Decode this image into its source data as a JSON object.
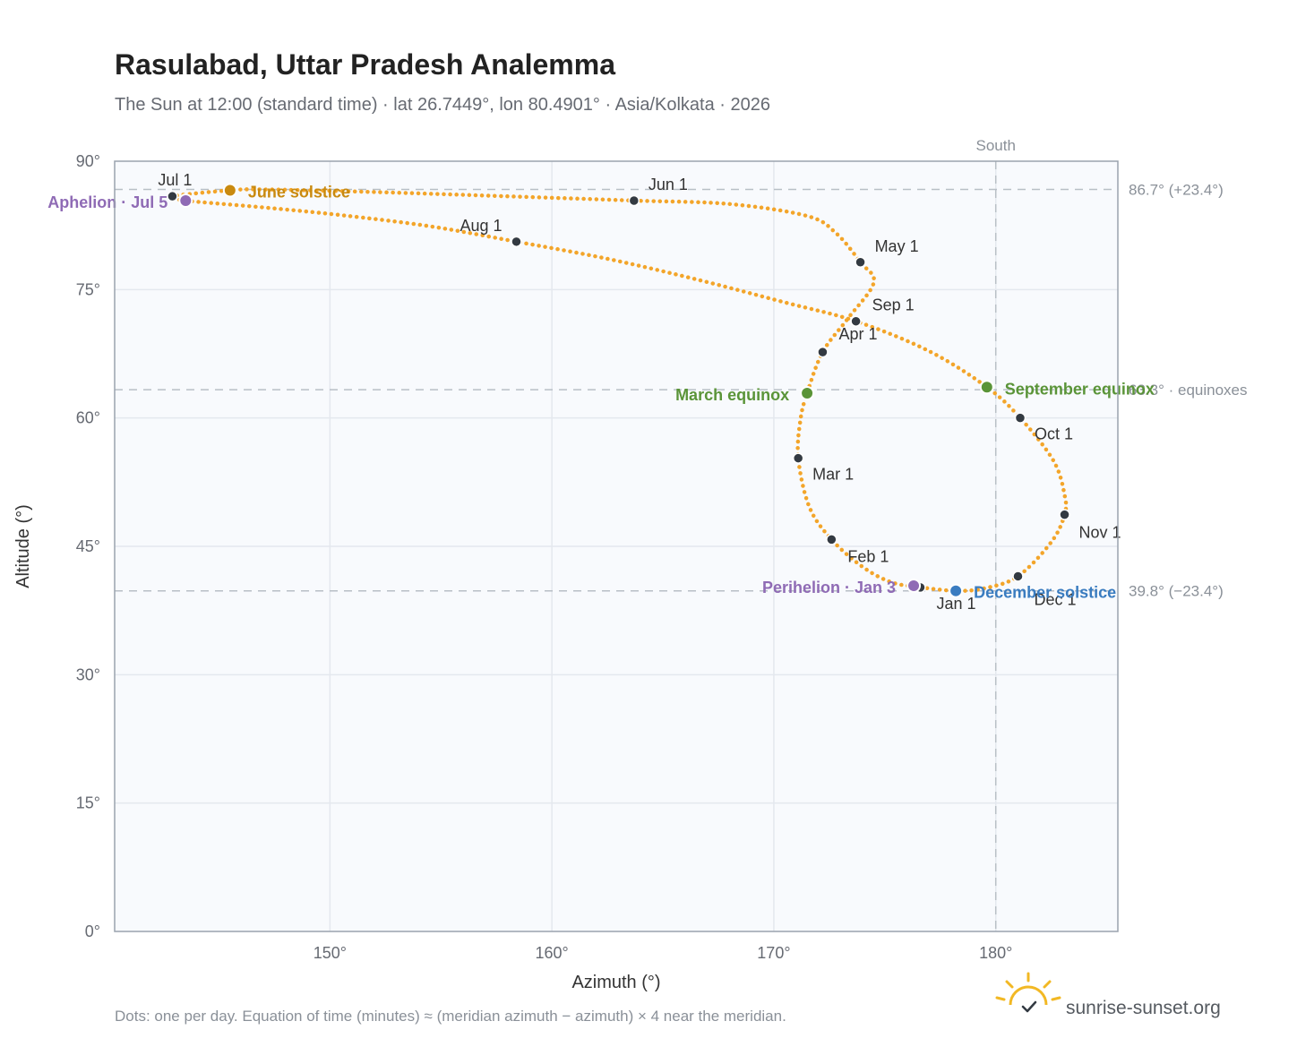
{
  "title": "Rasulabad, Uttar Pradesh Analemma",
  "subtitle": "The Sun at 12:00 (standard time) · lat 26.7449°, lon 80.4901° · Asia/Kolkata · 2026",
  "footnote": "Dots: one per day. Equation of time (minutes) ≈ (meridian azimuth − azimuth) × 4 near the meridian.",
  "brand": {
    "name": "sunrise-sunset.org",
    "logo_icon": "sun-logo-icon"
  },
  "colors": {
    "curve": "#f3a52a",
    "month_dot": "#333a42",
    "solstice_june": "#c98a10",
    "solstice_dec": "#3a7cc0",
    "equinox": "#5a9438",
    "apsis": "#8f6bb5",
    "reference": "#b8bfc6",
    "plot_bg": "#f8fafd",
    "grid": "#e4e8ee",
    "frame": "#9aa3ae"
  },
  "chart_data": {
    "type": "scatter",
    "xlabel": "Azimuth (°)",
    "ylabel": "Altitude (°)",
    "xlim": [
      140.3,
      185.5
    ],
    "ylim": [
      0,
      90
    ],
    "x_ticks": [
      150,
      160,
      170,
      180
    ],
    "x_tick_labels": [
      "150°",
      "160°",
      "170°",
      "180°"
    ],
    "y_ticks": [
      0,
      15,
      30,
      45,
      60,
      75,
      90
    ],
    "y_tick_labels": [
      "0°",
      "15°",
      "30°",
      "45°",
      "60°",
      "75°",
      "90°"
    ],
    "grid": true,
    "path": [
      [
        176.6,
        40.2
      ],
      [
        175.3,
        40.8
      ],
      [
        174.0,
        42.6
      ],
      [
        172.6,
        45.8
      ],
      [
        171.6,
        49.6
      ],
      [
        171.1,
        55.3
      ],
      [
        171.2,
        59.8
      ],
      [
        171.5,
        62.9
      ],
      [
        172.2,
        67.7
      ],
      [
        173.3,
        71.5
      ],
      [
        174.5,
        75.8
      ],
      [
        173.9,
        78.2
      ],
      [
        172.8,
        81.6
      ],
      [
        171.5,
        83.6
      ],
      [
        168.0,
        85.0
      ],
      [
        163.7,
        85.4
      ],
      [
        158.0,
        85.9
      ],
      [
        152.0,
        86.4
      ],
      [
        147.0,
        86.7
      ],
      [
        145.5,
        86.6
      ],
      [
        142.9,
        85.9
      ],
      [
        143.5,
        85.4
      ],
      [
        147.0,
        84.6
      ],
      [
        150.5,
        83.7
      ],
      [
        154.5,
        82.4
      ],
      [
        158.4,
        80.6
      ],
      [
        162.5,
        78.6
      ],
      [
        166.5,
        76.2
      ],
      [
        170.5,
        73.5
      ],
      [
        173.7,
        71.3
      ],
      [
        177.0,
        67.8
      ],
      [
        179.6,
        63.6
      ],
      [
        181.1,
        60.0
      ],
      [
        182.6,
        55.0
      ],
      [
        183.1,
        51.0
      ],
      [
        183.1,
        48.7
      ],
      [
        182.5,
        45.5
      ],
      [
        181.0,
        41.5
      ],
      [
        179.5,
        40.1
      ],
      [
        178.2,
        39.8
      ],
      [
        176.6,
        40.2
      ]
    ],
    "months": [
      {
        "label": "Jan 1",
        "az": 176.6,
        "alt": 40.2
      },
      {
        "label": "Feb 1",
        "az": 172.6,
        "alt": 45.8
      },
      {
        "label": "Mar 1",
        "az": 171.1,
        "alt": 55.3
      },
      {
        "label": "Apr 1",
        "az": 172.2,
        "alt": 67.7
      },
      {
        "label": "May 1",
        "az": 173.9,
        "alt": 78.2
      },
      {
        "label": "Jun 1",
        "az": 163.7,
        "alt": 85.4
      },
      {
        "label": "Jul 1",
        "az": 142.9,
        "alt": 85.9
      },
      {
        "label": "Aug 1",
        "az": 158.4,
        "alt": 80.6
      },
      {
        "label": "Sep 1",
        "az": 173.7,
        "alt": 71.3
      },
      {
        "label": "Oct 1",
        "az": 181.1,
        "alt": 60.0
      },
      {
        "label": "Nov 1",
        "az": 183.1,
        "alt": 48.7
      },
      {
        "label": "Dec 1",
        "az": 181.0,
        "alt": 41.5
      }
    ],
    "events": [
      {
        "label": "June solstice",
        "az": 145.5,
        "alt": 86.6,
        "kind": "solstice_june"
      },
      {
        "label": "December solstice",
        "az": 178.2,
        "alt": 39.8,
        "kind": "solstice_dec"
      },
      {
        "label": "March equinox",
        "az": 171.5,
        "alt": 62.9,
        "kind": "equinox"
      },
      {
        "label": "September equinox",
        "az": 179.6,
        "alt": 63.6,
        "kind": "equinox"
      },
      {
        "label": "Aphelion · Jul 5",
        "az": 143.5,
        "alt": 85.4,
        "kind": "apsis"
      },
      {
        "label": "Perihelion · Jan 3",
        "az": 176.3,
        "alt": 40.4,
        "kind": "apsis"
      }
    ],
    "reference_lines": [
      {
        "type": "horizontal",
        "value": 86.7,
        "label": "86.7° (+23.4°)"
      },
      {
        "type": "horizontal",
        "value": 63.3,
        "label": "63.3° · equinoxes"
      },
      {
        "type": "horizontal",
        "value": 39.8,
        "label": "39.8° (−23.4°)"
      },
      {
        "type": "vertical",
        "value": 180,
        "label": "South"
      }
    ]
  }
}
